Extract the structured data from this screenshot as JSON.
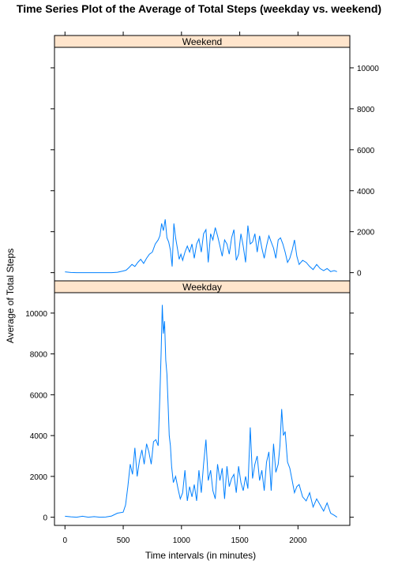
{
  "colors": {
    "line": "#0080ff",
    "strip_fill": "#ffe5cc",
    "axis": "#000000"
  },
  "chart_data": {
    "type": "line",
    "title": "Time Series Plot of the Average of Total Steps (weekday vs. weekend)",
    "xlabel": "Time intervals (in minutes)",
    "ylabel": "Average of Total Steps",
    "xlim": [
      -90,
      2445
    ],
    "ylim": [
      -400,
      11000
    ],
    "x_ticks": [
      0,
      500,
      1000,
      1500,
      2000
    ],
    "y_ticks": [
      0,
      2000,
      4000,
      6000,
      8000,
      10000
    ],
    "panels": [
      {
        "name": "Weekend",
        "series": {
          "name": "Weekend",
          "x": [
            0,
            50,
            100,
            150,
            200,
            250,
            300,
            350,
            400,
            450,
            500,
            525,
            550,
            575,
            600,
            625,
            650,
            675,
            700,
            725,
            750,
            775,
            800,
            815,
            830,
            845,
            860,
            875,
            890,
            905,
            920,
            935,
            950,
            965,
            980,
            995,
            1010,
            1030,
            1050,
            1070,
            1090,
            1110,
            1130,
            1150,
            1170,
            1190,
            1210,
            1230,
            1250,
            1270,
            1290,
            1310,
            1330,
            1350,
            1370,
            1390,
            1410,
            1430,
            1450,
            1470,
            1490,
            1510,
            1530,
            1550,
            1570,
            1590,
            1610,
            1630,
            1650,
            1670,
            1690,
            1710,
            1730,
            1750,
            1770,
            1790,
            1810,
            1830,
            1850,
            1870,
            1890,
            1910,
            1930,
            1950,
            1970,
            1990,
            2010,
            2040,
            2070,
            2100,
            2130,
            2160,
            2190,
            2220,
            2250,
            2280,
            2310,
            2335
          ],
          "y": [
            40,
            10,
            0,
            0,
            0,
            0,
            0,
            0,
            0,
            20,
            80,
            120,
            250,
            400,
            300,
            500,
            650,
            450,
            700,
            900,
            1000,
            1400,
            1600,
            1800,
            2400,
            2050,
            2600,
            1700,
            1500,
            1100,
            300,
            2400,
            1700,
            1200,
            650,
            900,
            600,
            1000,
            1300,
            1000,
            1400,
            700,
            1400,
            1650,
            1000,
            1900,
            2100,
            500,
            1900,
            1600,
            2200,
            1800,
            1300,
            800,
            1600,
            1400,
            900,
            1700,
            2100,
            600,
            900,
            1900,
            1300,
            500,
            2300,
            1400,
            1500,
            1900,
            1000,
            1800,
            1200,
            700,
            1300,
            1800,
            1500,
            1200,
            700,
            1600,
            1700,
            1400,
            1000,
            500,
            700,
            1100,
            1600,
            800,
            400,
            600,
            500,
            300,
            150,
            400,
            200,
            100,
            200,
            50,
            100,
            50
          ]
        }
      },
      {
        "name": "Weekday",
        "series": {
          "name": "Weekday",
          "x": [
            0,
            50,
            100,
            150,
            200,
            250,
            300,
            350,
            400,
            450,
            500,
            520,
            540,
            560,
            580,
            600,
            620,
            640,
            660,
            680,
            700,
            720,
            740,
            760,
            780,
            800,
            815,
            825,
            835,
            845,
            855,
            865,
            875,
            885,
            895,
            905,
            915,
            930,
            950,
            970,
            990,
            1010,
            1030,
            1050,
            1070,
            1090,
            1110,
            1130,
            1150,
            1170,
            1190,
            1210,
            1230,
            1250,
            1270,
            1290,
            1310,
            1330,
            1350,
            1370,
            1390,
            1410,
            1430,
            1450,
            1470,
            1490,
            1510,
            1530,
            1550,
            1570,
            1590,
            1610,
            1630,
            1650,
            1670,
            1690,
            1710,
            1730,
            1750,
            1770,
            1790,
            1810,
            1830,
            1845,
            1860,
            1875,
            1890,
            1910,
            1930,
            1950,
            1970,
            1990,
            2010,
            2040,
            2070,
            2100,
            2130,
            2160,
            2190,
            2220,
            2250,
            2280,
            2310,
            2335
          ],
          "y": [
            50,
            20,
            0,
            50,
            0,
            30,
            0,
            10,
            60,
            200,
            250,
            600,
            1500,
            2600,
            2100,
            3400,
            2000,
            2800,
            3300,
            2600,
            3600,
            3200,
            2600,
            3700,
            3800,
            3500,
            6000,
            8000,
            10400,
            9000,
            9600,
            7700,
            7000,
            5600,
            4000,
            3500,
            2500,
            1700,
            2000,
            1400,
            900,
            1200,
            2300,
            800,
            1500,
            1000,
            1600,
            800,
            2300,
            1200,
            2600,
            3800,
            1800,
            2300,
            1300,
            900,
            2600,
            1800,
            2400,
            900,
            2500,
            1500,
            1900,
            2100,
            1200,
            2500,
            1700,
            1300,
            2000,
            1400,
            4400,
            1900,
            2600,
            3000,
            1800,
            2300,
            1300,
            2700,
            3200,
            1300,
            3600,
            2200,
            2600,
            3500,
            5300,
            4000,
            4200,
            2700,
            2400,
            1800,
            1200,
            1500,
            1600,
            1000,
            800,
            1200,
            500,
            900,
            600,
            300,
            700,
            200,
            100,
            0
          ]
        }
      }
    ]
  }
}
